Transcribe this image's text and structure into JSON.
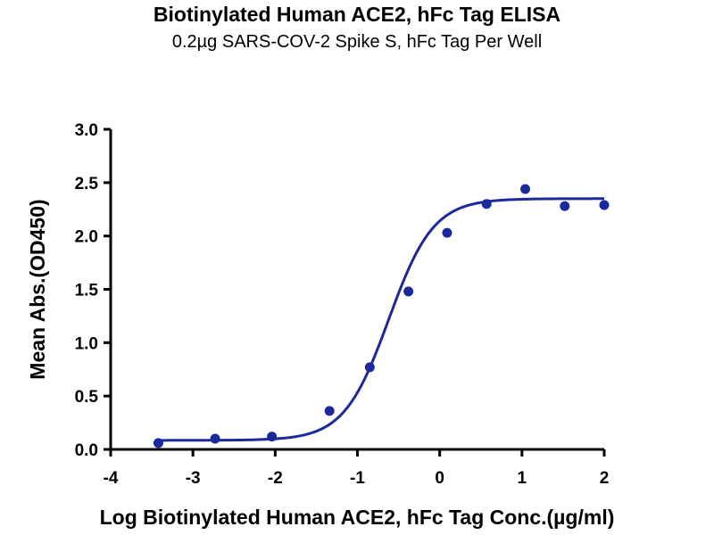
{
  "chart_data": {
    "type": "scatter",
    "title": "Biotinylated Human ACE2, hFc Tag ELISA",
    "subtitle": "0.2µg SARS-COV-2 Spike S, hFc Tag Per Well",
    "xlabel": "Log Biotinylated Human ACE2, hFc Tag Conc.(µg/ml)",
    "ylabel": "Mean Abs.(OD450)",
    "xlim": [
      -4,
      2
    ],
    "ylim": [
      0,
      3
    ],
    "xticks": [
      "-4",
      "-3",
      "-2",
      "-1",
      "0",
      "1",
      "2"
    ],
    "yticks": [
      "0.0",
      "0.5",
      "1.0",
      "1.5",
      "2.0",
      "2.5",
      "3.0"
    ],
    "grid": false,
    "legend": "none",
    "colors": {
      "series": "#1a2a9c",
      "axis": "#000000"
    },
    "series": [
      {
        "x": [
          -3.42,
          -2.73,
          -2.04,
          -1.34,
          -0.85,
          -0.38,
          0.09,
          0.57,
          1.04,
          1.52,
          2.0
        ],
        "values": [
          0.06,
          0.1,
          0.12,
          0.36,
          0.77,
          1.48,
          2.03,
          2.3,
          2.44,
          2.28,
          2.29
        ],
        "fit": {
          "model": "4PL",
          "bottom": 0.085,
          "top": 2.35,
          "log_ec50": -0.62,
          "hill_slope": 1.6
        }
      }
    ]
  }
}
